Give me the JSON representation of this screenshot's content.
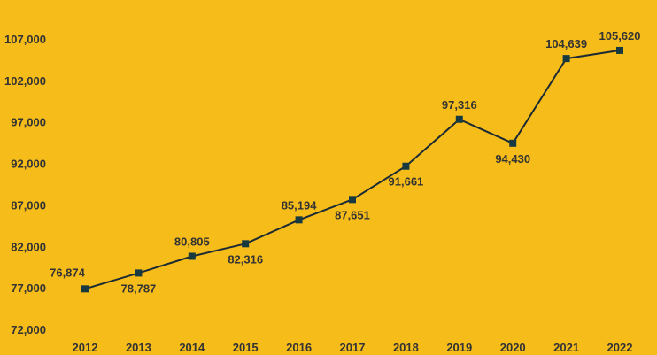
{
  "chart_data": {
    "type": "line",
    "title": "",
    "xlabel": "",
    "ylabel": "",
    "categories": [
      "2012",
      "2013",
      "2014",
      "2015",
      "2016",
      "2017",
      "2018",
      "2019",
      "2020",
      "2021",
      "2022"
    ],
    "series": [
      {
        "values": [
          76874,
          78787,
          80805,
          82316,
          85194,
          87651,
          91661,
          97316,
          94430,
          104639,
          105620
        ]
      }
    ],
    "data_labels": [
      "76,874",
      "78,787",
      "80,805",
      "82,316",
      "85,194",
      "87,651",
      "91,661",
      "97,316",
      "94,430",
      "104,639",
      "105,620"
    ],
    "yticks": [
      72000,
      77000,
      82000,
      87000,
      92000,
      97000,
      102000,
      107000
    ],
    "ytick_labels": [
      "72,000",
      "77,000",
      "82,000",
      "87,000",
      "92,000",
      "97,000",
      "102,000",
      "107,000"
    ],
    "ylim": [
      72000,
      107000
    ],
    "grid": false,
    "legend": "none",
    "colors": {
      "background": "#F6BC1A",
      "line": "#1B2A33",
      "marker": "#173A40",
      "text": "#333333"
    },
    "marker": "square"
  }
}
